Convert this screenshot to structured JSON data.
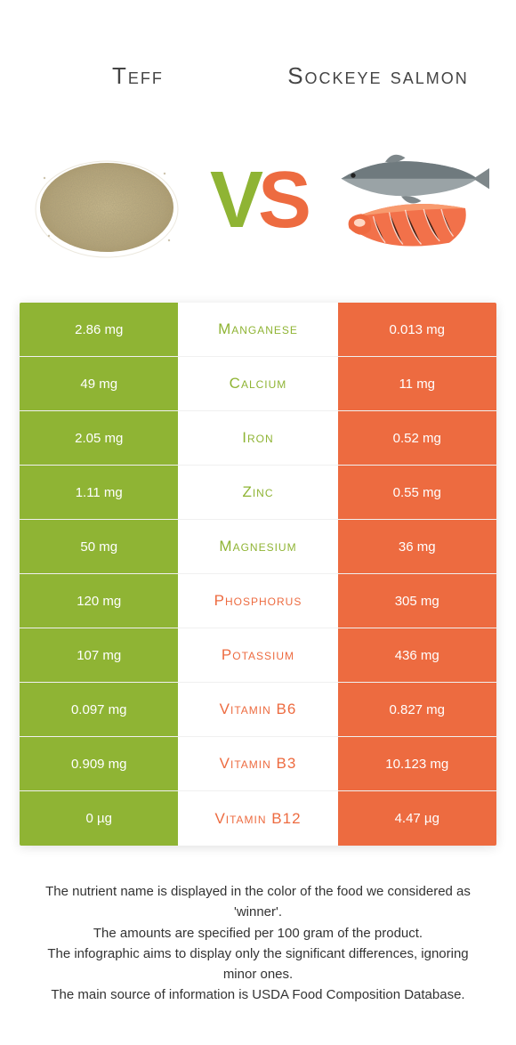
{
  "colors": {
    "teff": "#8fb434",
    "salmon": "#ed6b40",
    "row_border": "#f0f0f0",
    "text": "#333333",
    "white": "#ffffff"
  },
  "header": {
    "left": "Teff",
    "right": "Sockeye salmon"
  },
  "vs": {
    "v": "V",
    "s": "S"
  },
  "rows": [
    {
      "left": "2.86 mg",
      "label": "Manganese",
      "right": "0.013 mg",
      "winner": "teff"
    },
    {
      "left": "49 mg",
      "label": "Calcium",
      "right": "11 mg",
      "winner": "teff"
    },
    {
      "left": "2.05 mg",
      "label": "Iron",
      "right": "0.52 mg",
      "winner": "teff"
    },
    {
      "left": "1.11 mg",
      "label": "Zinc",
      "right": "0.55 mg",
      "winner": "teff"
    },
    {
      "left": "50 mg",
      "label": "Magnesium",
      "right": "36 mg",
      "winner": "teff"
    },
    {
      "left": "120 mg",
      "label": "Phosphorus",
      "right": "305 mg",
      "winner": "salmon"
    },
    {
      "left": "107 mg",
      "label": "Potassium",
      "right": "436 mg",
      "winner": "salmon"
    },
    {
      "left": "0.097 mg",
      "label": "Vitamin B6",
      "right": "0.827 mg",
      "winner": "salmon"
    },
    {
      "left": "0.909 mg",
      "label": "Vitamin B3",
      "right": "10.123 mg",
      "winner": "salmon"
    },
    {
      "left": "0 µg",
      "label": "Vitamin B12",
      "right": "4.47 µg",
      "winner": "salmon"
    }
  ],
  "footer": {
    "line1": "The nutrient name is displayed in the color of the food we considered as 'winner'.",
    "line2": "The amounts are specified per 100 gram of the product.",
    "line3": "The infographic aims to display only the significant differences, ignoring minor ones.",
    "line4": "The main source of information is USDA Food Composition Database."
  }
}
